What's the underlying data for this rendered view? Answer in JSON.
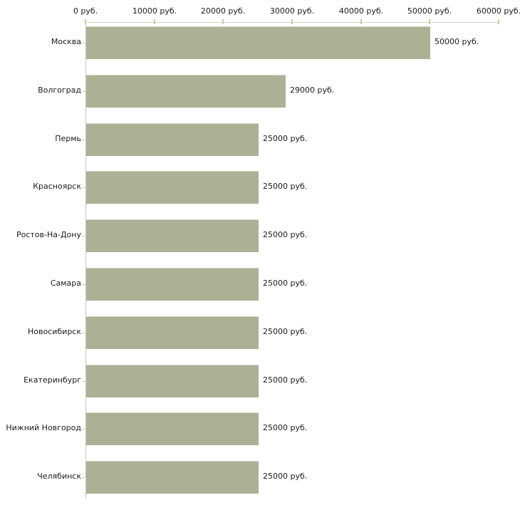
{
  "chart_data": {
    "type": "bar",
    "orientation": "horizontal",
    "title": "",
    "xlabel": "",
    "ylabel": "",
    "unit": "руб.",
    "categories": [
      "Москва",
      "Волгоград",
      "Пермь",
      "Красноярск",
      "Ростов-На-Дону",
      "Самара",
      "Новосибирск",
      "Екатеринбург",
      "Нижний Новгород",
      "Челябинск"
    ],
    "values": [
      50000,
      29000,
      25000,
      25000,
      25000,
      25000,
      25000,
      25000,
      25000,
      25000
    ],
    "value_labels": [
      "50000 руб.",
      "29000 руб.",
      "25000 руб.",
      "25000 руб.",
      "25000 руб.",
      "25000 руб.",
      "25000 руб.",
      "25000 руб.",
      "25000 руб.",
      "25000 руб."
    ],
    "x_axis": {
      "position": "top",
      "range": [
        0,
        60000
      ],
      "ticks": [
        0,
        10000,
        20000,
        30000,
        40000,
        50000,
        60000
      ],
      "tick_labels": [
        "0 руб.",
        "10000 руб.",
        "20000 руб.",
        "30000 руб.",
        "40000 руб.",
        "50000 руб.",
        "60000 руб."
      ]
    },
    "grid": false,
    "legend": false,
    "colors": {
      "bar_fill": "#acb195",
      "axis_line_horizontal": "#d6d3c0",
      "axis_line_vertical": "#c6c6c6",
      "tick_mark": "#c9c9a2",
      "category_tick": "#cfcdb8",
      "text": "#1a1a1a",
      "background": "#ffffff"
    }
  }
}
